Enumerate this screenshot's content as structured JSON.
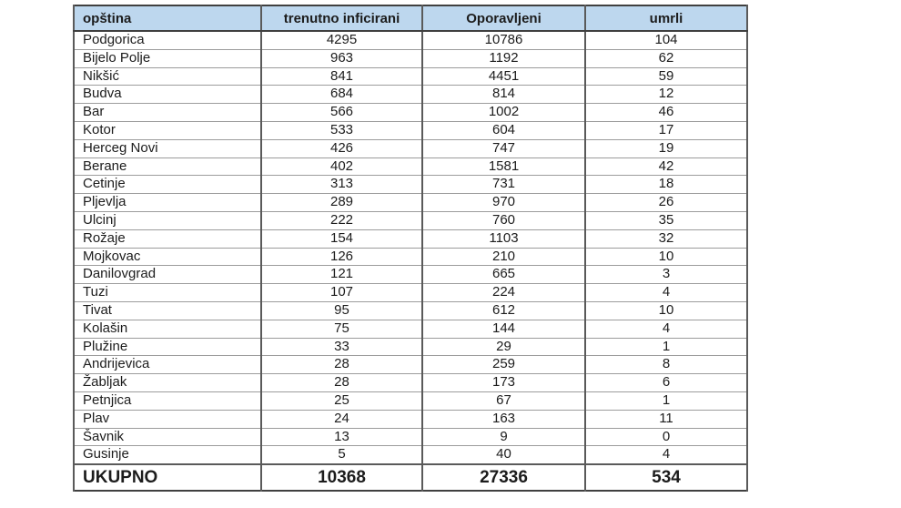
{
  "chart_data": {
    "type": "table",
    "title": "",
    "columns": [
      "opština",
      "trenutno inficirani",
      "Oporavljeni",
      "umrli"
    ],
    "rows": [
      [
        "Podgorica",
        4295,
        10786,
        104
      ],
      [
        "Bijelo Polje",
        963,
        1192,
        62
      ],
      [
        "Nikšić",
        841,
        4451,
        59
      ],
      [
        "Budva",
        684,
        814,
        12
      ],
      [
        "Bar",
        566,
        1002,
        46
      ],
      [
        "Kotor",
        533,
        604,
        17
      ],
      [
        "Herceg Novi",
        426,
        747,
        19
      ],
      [
        "Berane",
        402,
        1581,
        42
      ],
      [
        "Cetinje",
        313,
        731,
        18
      ],
      [
        "Pljevlja",
        289,
        970,
        26
      ],
      [
        "Ulcinj",
        222,
        760,
        35
      ],
      [
        "Rožaje",
        154,
        1103,
        32
      ],
      [
        "Mojkovac",
        126,
        210,
        10
      ],
      [
        "Danilovgrad",
        121,
        665,
        3
      ],
      [
        "Tuzi",
        107,
        224,
        4
      ],
      [
        "Tivat",
        95,
        612,
        10
      ],
      [
        "Kolašin",
        75,
        144,
        4
      ],
      [
        "Plužine",
        33,
        29,
        1
      ],
      [
        "Andrijevica",
        28,
        259,
        8
      ],
      [
        "Žabljak",
        28,
        173,
        6
      ],
      [
        "Petnjica",
        25,
        67,
        1
      ],
      [
        "Plav",
        24,
        163,
        11
      ],
      [
        "Šavnik",
        13,
        9,
        0
      ],
      [
        "Gusinje",
        5,
        40,
        4
      ]
    ],
    "total_row": [
      "UKUPNO",
      10368,
      27336,
      534
    ]
  },
  "colors": {
    "header_bg": "#bdd7ee",
    "border_dark": "#404040",
    "border_light": "#9c9c9c",
    "text": "#1c1c1c",
    "background": "#ffffff"
  }
}
